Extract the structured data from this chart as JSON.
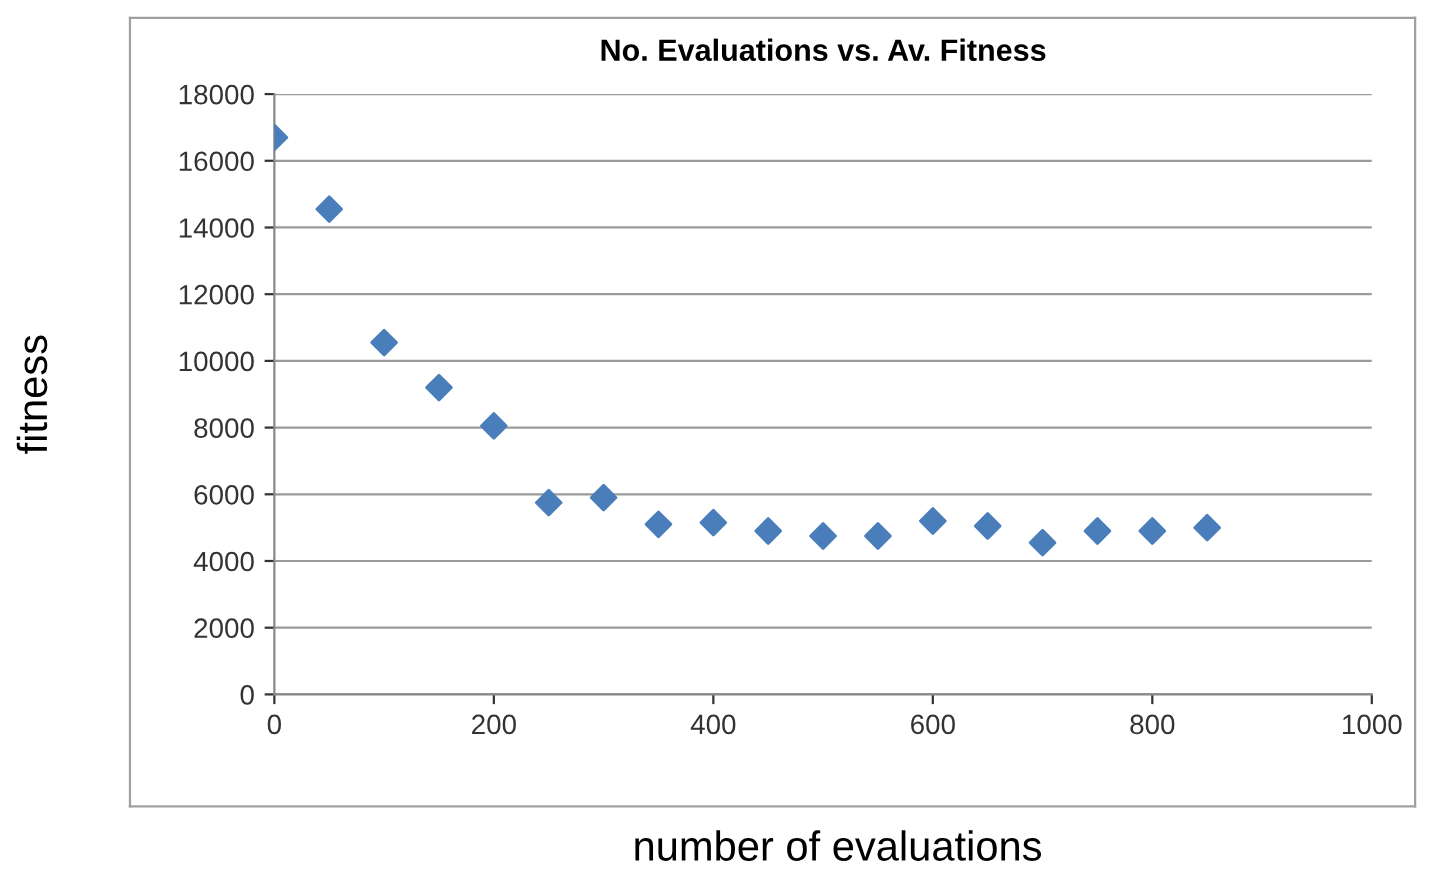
{
  "chart_data": {
    "type": "scatter",
    "title": "No. Evaluations vs. Av. Fitness",
    "xlabel": "number of evaluations",
    "ylabel": "fitness",
    "x": [
      0,
      50,
      100,
      150,
      200,
      250,
      300,
      350,
      400,
      450,
      500,
      550,
      600,
      650,
      700,
      750,
      800,
      850
    ],
    "series": [
      {
        "color": "#4a7ebb",
        "values": [
          16700,
          14550,
          10550,
          9200,
          8050,
          5750,
          5900,
          5100,
          5150,
          4900,
          4750,
          4750,
          5200,
          5050,
          4550,
          4900,
          4900,
          5000
        ]
      }
    ],
    "xlim": [
      0,
      1000
    ],
    "xticks": [
      0,
      200,
      400,
      600,
      800,
      1000
    ],
    "ylim": [
      0,
      18000
    ],
    "yticks": [
      0,
      2000,
      4000,
      6000,
      8000,
      10000,
      12000,
      14000,
      16000,
      18000
    ],
    "grid": "y",
    "marker": "diamond",
    "legend": false
  }
}
